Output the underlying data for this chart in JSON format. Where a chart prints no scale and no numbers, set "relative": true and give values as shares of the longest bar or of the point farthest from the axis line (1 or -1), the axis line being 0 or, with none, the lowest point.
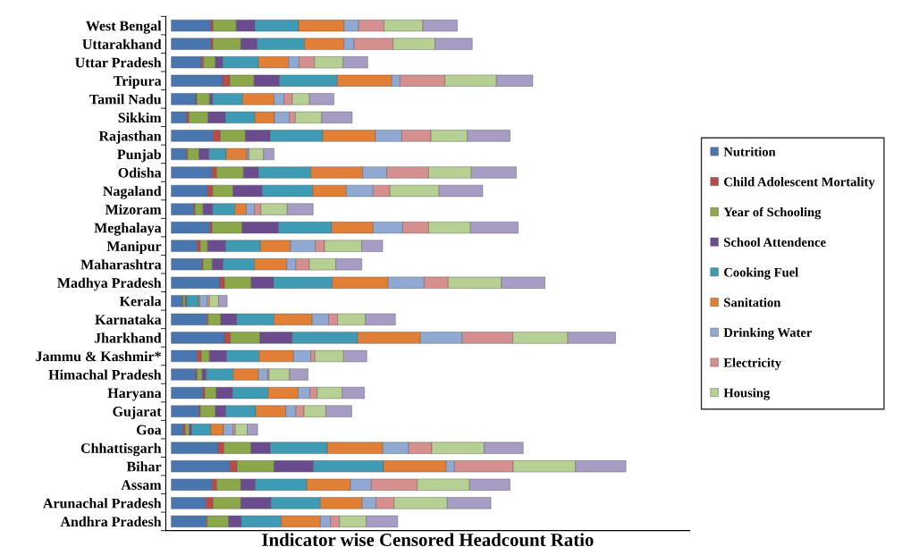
{
  "chart_data": {
    "type": "bar",
    "orientation": "horizontal",
    "stacked": true,
    "relative": true,
    "xlabel": "Indicator wise Censored Headcount Ratio",
    "categories": [
      "West Bengal",
      "Uttarakhand",
      "Uttar Pradesh",
      "Tripura",
      "Tamil Nadu",
      "Sikkim",
      "Rajasthan",
      "Punjab",
      "Odisha",
      "Nagaland",
      "Mizoram",
      "Meghalaya",
      "Manipur",
      "Maharashtra",
      "Madhya Pradesh",
      "Kerala",
      "Karnataka",
      "Jharkhand",
      "Jammu & Kashmir*",
      "Himachal Pradesh",
      "Haryana",
      "Gujarat",
      "Goa",
      "Chhattisgarh",
      "Bihar",
      "Assam",
      "Arunachal Pradesh",
      "Andhra Pradesh"
    ],
    "legend": "right",
    "grid": false,
    "series": [
      {
        "name": "Nutrition",
        "color": "#4a76b0",
        "values": [
          0.087,
          0.087,
          0.066,
          0.113,
          0.054,
          0.034,
          0.092,
          0.033,
          0.09,
          0.08,
          0.049,
          0.085,
          0.057,
          0.067,
          0.107,
          0.024,
          0.078,
          0.117,
          0.057,
          0.054,
          0.069,
          0.061,
          0.026,
          0.103,
          0.129,
          0.09,
          0.076,
          0.077
        ]
      },
      {
        "name": "Child Adolescent Mortality",
        "color": "#b84a47",
        "values": [
          0.005,
          0.005,
          0.005,
          0.016,
          0.002,
          0.005,
          0.016,
          0.003,
          0.01,
          0.011,
          0.003,
          0.005,
          0.007,
          0.003,
          0.01,
          0.002,
          0.003,
          0.013,
          0.009,
          0.003,
          0.005,
          0.003,
          0.005,
          0.013,
          0.016,
          0.01,
          0.016,
          0.002
        ]
      },
      {
        "name": "Year of Schooling",
        "color": "#8aa849",
        "values": [
          0.051,
          0.061,
          0.026,
          0.053,
          0.028,
          0.042,
          0.055,
          0.025,
          0.059,
          0.045,
          0.018,
          0.066,
          0.016,
          0.02,
          0.059,
          0.005,
          0.028,
          0.065,
          0.018,
          0.011,
          0.025,
          0.033,
          0.009,
          0.059,
          0.081,
          0.053,
          0.061,
          0.047
        ]
      },
      {
        "name": "School Attendence",
        "color": "#6a4c8e",
        "values": [
          0.041,
          0.036,
          0.016,
          0.056,
          0.007,
          0.038,
          0.055,
          0.022,
          0.033,
          0.064,
          0.021,
          0.08,
          0.04,
          0.024,
          0.049,
          0.003,
          0.035,
          0.071,
          0.038,
          0.009,
          0.036,
          0.023,
          0.005,
          0.043,
          0.087,
          0.032,
          0.066,
          0.028
        ]
      },
      {
        "name": "Cooking Fuel",
        "color": "#3e9bb3",
        "values": [
          0.096,
          0.104,
          0.079,
          0.127,
          0.066,
          0.065,
          0.115,
          0.038,
          0.115,
          0.111,
          0.049,
          0.117,
          0.076,
          0.069,
          0.129,
          0.026,
          0.082,
          0.144,
          0.071,
          0.059,
          0.078,
          0.066,
          0.042,
          0.125,
          0.154,
          0.113,
          0.109,
          0.088
        ]
      },
      {
        "name": "Sanitation",
        "color": "#e07f35",
        "values": [
          0.1,
          0.087,
          0.066,
          0.12,
          0.069,
          0.043,
          0.116,
          0.044,
          0.114,
          0.074,
          0.025,
          0.091,
          0.066,
          0.071,
          0.123,
          0.003,
          0.084,
          0.138,
          0.076,
          0.056,
          0.066,
          0.066,
          0.028,
          0.122,
          0.138,
          0.096,
          0.092,
          0.086
        ]
      },
      {
        "name": "Drinking Water",
        "color": "#8fa9d3",
        "values": [
          0.032,
          0.022,
          0.023,
          0.018,
          0.022,
          0.033,
          0.058,
          0.003,
          0.053,
          0.059,
          0.018,
          0.065,
          0.055,
          0.02,
          0.079,
          0.016,
          0.036,
          0.092,
          0.038,
          0.02,
          0.026,
          0.022,
          0.021,
          0.057,
          0.018,
          0.046,
          0.03,
          0.022
        ]
      },
      {
        "name": "Electricity",
        "color": "#d58f8e",
        "values": [
          0.056,
          0.086,
          0.034,
          0.099,
          0.018,
          0.013,
          0.064,
          0.003,
          0.092,
          0.037,
          0.014,
          0.057,
          0.02,
          0.03,
          0.053,
          0.005,
          0.02,
          0.111,
          0.009,
          0.003,
          0.016,
          0.018,
          0.005,
          0.051,
          0.129,
          0.101,
          0.04,
          0.02
        ]
      },
      {
        "name": "Housing",
        "color": "#b6cf92",
        "values": [
          0.085,
          0.092,
          0.063,
          0.113,
          0.038,
          0.058,
          0.08,
          0.032,
          0.094,
          0.108,
          0.058,
          0.092,
          0.082,
          0.058,
          0.117,
          0.02,
          0.061,
          0.121,
          0.063,
          0.045,
          0.055,
          0.048,
          0.026,
          0.115,
          0.137,
          0.115,
          0.117,
          0.059
        ]
      },
      {
        "color": "#a69cc4",
        "values": [
          0.076,
          0.082,
          0.054,
          0.08,
          0.054,
          0.067,
          0.094,
          0.023,
          0.099,
          0.096,
          0.057,
          0.105,
          0.046,
          0.057,
          0.096,
          0.019,
          0.066,
          0.105,
          0.051,
          0.041,
          0.049,
          0.057,
          0.023,
          0.086,
          0.111,
          0.089,
          0.096,
          0.069
        ]
      }
    ]
  }
}
